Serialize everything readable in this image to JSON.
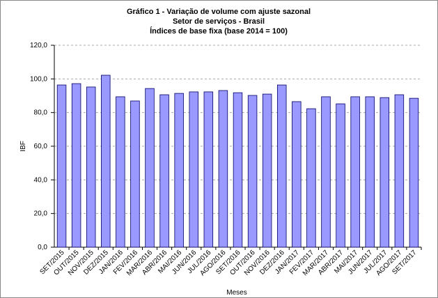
{
  "chart_data": {
    "type": "bar",
    "title": [
      "Gráfico 1 - Variação de volume com ajuste sazonal",
      "Setor de serviços - Brasil",
      "Índices de base fixa  (base 2014 = 100)"
    ],
    "x_label": "Meses",
    "y_label": "IBF",
    "categories": [
      "SET/2015",
      "OUT/2015",
      "NOV/2015",
      "DEZ/2015",
      "JAN/2016",
      "FEV/2016",
      "MAR/2016",
      "ABR/2016",
      "MAI/2016",
      "JUN/2016",
      "JUL/2016",
      "AGO/2016",
      "SET/2016",
      "OUT/2016",
      "NOV/2016",
      "DEZ/2016",
      "JAN/2017",
      "FEV/2017",
      "MAR/2017",
      "ABR/2017",
      "MAI/2017",
      "JUN/2017",
      "JUL/2017",
      "AGO/2017",
      "SET/2017"
    ],
    "values": [
      96.4,
      97.2,
      95.2,
      102.2,
      89.4,
      86.9,
      94.3,
      90.6,
      91.4,
      92.3,
      92.3,
      93.1,
      91.8,
      90.2,
      91.0,
      96.4,
      86.5,
      82.3,
      89.4,
      85.2,
      89.4,
      89.4,
      88.9,
      90.6,
      88.5
    ],
    "color": "#9999ff",
    "ylim": [
      0,
      120
    ],
    "yticks": [
      {
        "value": 0,
        "label": "0,0"
      },
      {
        "value": 20,
        "label": "20,0"
      },
      {
        "value": 40,
        "label": "40,0"
      },
      {
        "value": 60,
        "label": "60,0"
      },
      {
        "value": 80,
        "label": "80,0"
      },
      {
        "value": 100,
        "label": "100,0"
      },
      {
        "value": 120,
        "label": "120,0"
      }
    ],
    "grid": true
  }
}
